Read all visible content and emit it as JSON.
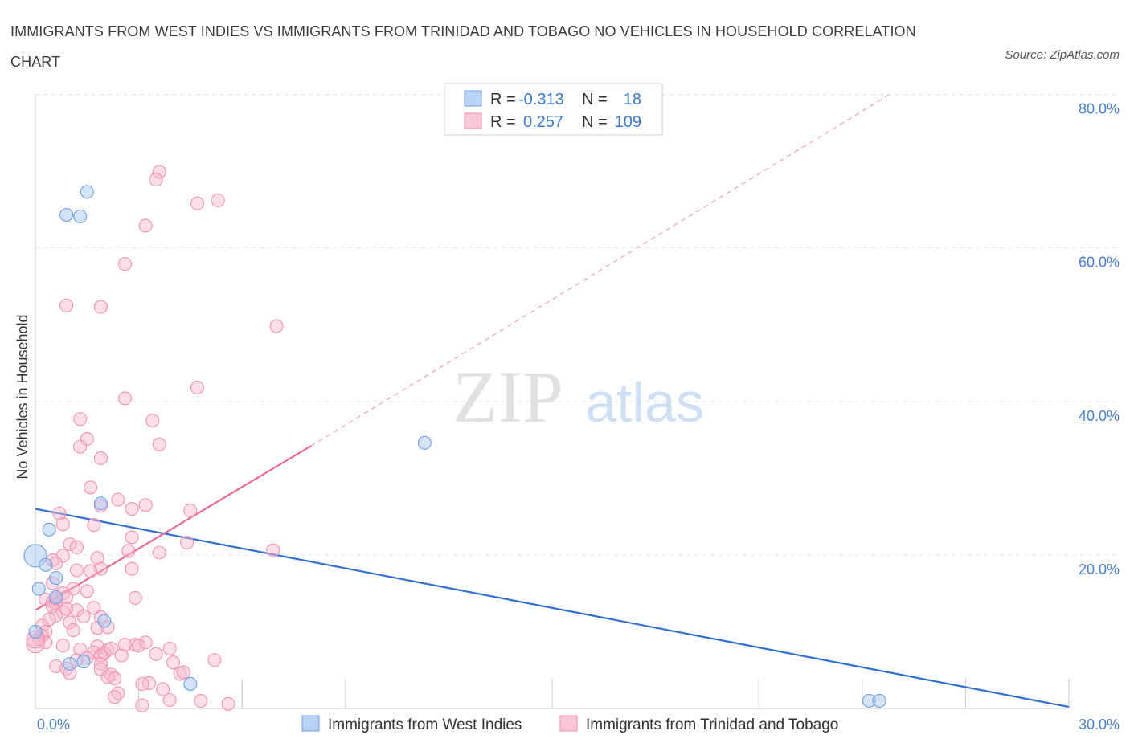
{
  "title": "IMMIGRANTS FROM WEST INDIES VS IMMIGRANTS FROM TRINIDAD AND TOBAGO NO VEHICLES IN HOUSEHOLD CORRELATION CHART",
  "source": "Source: ZipAtlas.com",
  "watermark": {
    "zip": "ZIP",
    "atlas": "atlas"
  },
  "stats": [
    {
      "r_label": "R =",
      "r_value": "-0.313",
      "n_label": "N =",
      "n_value": "18"
    },
    {
      "r_label": "R =",
      "r_value": "0.257",
      "n_label": "N =",
      "n_value": "109"
    }
  ],
  "chart_data": {
    "type": "scatter",
    "ylabel": "No Vehicles in Household",
    "xlim": [
      0,
      30
    ],
    "ylim": [
      0,
      80
    ],
    "x_tick_labels": [
      {
        "value": 0,
        "label": "0.0%"
      },
      {
        "value": 30,
        "label": "30.0%"
      }
    ],
    "y_tick_labels": [
      {
        "value": 80,
        "label": "80.0%"
      },
      {
        "value": 60,
        "label": "60.0%"
      },
      {
        "value": 40,
        "label": "40.0%"
      },
      {
        "value": 20,
        "label": "20.0%"
      }
    ],
    "gridlines": true,
    "series": [
      {
        "name": "Immigrants from West Indies",
        "color": "#6f9fe0",
        "line_color": "#2f6fcf",
        "points": [
          [
            1.5,
            67.3
          ],
          [
            0.9,
            64.3
          ],
          [
            1.3,
            64.1
          ],
          [
            11.3,
            34.6
          ],
          [
            1.9,
            26.7
          ],
          [
            0.4,
            23.3
          ],
          [
            0.0,
            19.9
          ],
          [
            0.3,
            18.7
          ],
          [
            0.6,
            17.0
          ],
          [
            0.1,
            15.6
          ],
          [
            0.6,
            14.5
          ],
          [
            2.0,
            11.4
          ],
          [
            1.4,
            6.1
          ],
          [
            1.0,
            5.8
          ],
          [
            4.5,
            3.2
          ],
          [
            24.2,
            1.0
          ],
          [
            24.5,
            1.0
          ],
          [
            0.0,
            10.0
          ]
        ],
        "trend": {
          "x": [
            0,
            30
          ],
          "y": [
            26.0,
            0.2
          ],
          "style": "solid"
        }
      },
      {
        "name": "Immigrants from Trinidad and Tobago",
        "color": "#f08db0",
        "line_color": "#e8699a",
        "points": [
          [
            3.6,
            69.9
          ],
          [
            3.5,
            68.9
          ],
          [
            5.3,
            66.2
          ],
          [
            4.7,
            65.8
          ],
          [
            3.2,
            62.9
          ],
          [
            2.6,
            57.9
          ],
          [
            0.9,
            52.5
          ],
          [
            1.9,
            52.3
          ],
          [
            7.0,
            49.8
          ],
          [
            4.7,
            41.8
          ],
          [
            2.6,
            40.4
          ],
          [
            1.3,
            37.7
          ],
          [
            3.4,
            37.5
          ],
          [
            1.5,
            35.1
          ],
          [
            1.3,
            34.1
          ],
          [
            3.6,
            34.4
          ],
          [
            1.9,
            32.6
          ],
          [
            1.6,
            28.8
          ],
          [
            2.4,
            27.2
          ],
          [
            1.9,
            26.4
          ],
          [
            3.2,
            26.5
          ],
          [
            2.8,
            26.0
          ],
          [
            4.5,
            25.8
          ],
          [
            0.7,
            25.4
          ],
          [
            1.7,
            23.9
          ],
          [
            0.8,
            24.0
          ],
          [
            2.8,
            22.3
          ],
          [
            4.4,
            21.6
          ],
          [
            1.0,
            21.4
          ],
          [
            1.2,
            21.0
          ],
          [
            2.7,
            20.5
          ],
          [
            3.6,
            20.3
          ],
          [
            6.9,
            20.6
          ],
          [
            0.8,
            19.9
          ],
          [
            1.8,
            19.6
          ],
          [
            0.5,
            19.3
          ],
          [
            0.6,
            18.9
          ],
          [
            1.9,
            18.2
          ],
          [
            1.2,
            18.0
          ],
          [
            2.8,
            18.2
          ],
          [
            1.6,
            17.9
          ],
          [
            0.5,
            16.3
          ],
          [
            1.1,
            15.6
          ],
          [
            1.5,
            15.3
          ],
          [
            0.8,
            15.0
          ],
          [
            0.9,
            14.5
          ],
          [
            0.3,
            14.2
          ],
          [
            2.9,
            14.4
          ],
          [
            0.5,
            13.9
          ],
          [
            0.6,
            13.6
          ],
          [
            0.5,
            13.3
          ],
          [
            1.7,
            13.1
          ],
          [
            1.2,
            12.8
          ],
          [
            0.8,
            12.6
          ],
          [
            0.6,
            12.1
          ],
          [
            1.9,
            11.9
          ],
          [
            0.4,
            11.6
          ],
          [
            1.0,
            11.2
          ],
          [
            0.2,
            10.8
          ],
          [
            1.8,
            10.5
          ],
          [
            2.1,
            10.6
          ],
          [
            0.3,
            10.0
          ],
          [
            0.2,
            9.5
          ],
          [
            0.1,
            9.1
          ],
          [
            0.3,
            8.6
          ],
          [
            0.0,
            8.4
          ],
          [
            0.8,
            8.2
          ],
          [
            3.2,
            8.6
          ],
          [
            2.6,
            8.3
          ],
          [
            2.9,
            8.3
          ],
          [
            1.8,
            8.1
          ],
          [
            3.9,
            7.8
          ],
          [
            1.3,
            7.7
          ],
          [
            2.1,
            7.6
          ],
          [
            1.7,
            7.3
          ],
          [
            3.5,
            7.1
          ],
          [
            1.9,
            6.9
          ],
          [
            2.0,
            7.2
          ],
          [
            1.5,
            6.6
          ],
          [
            1.2,
            6.3
          ],
          [
            5.2,
            6.3
          ],
          [
            0.6,
            5.5
          ],
          [
            1.9,
            5.8
          ],
          [
            0.9,
            5.2
          ],
          [
            1.9,
            5.1
          ],
          [
            1.0,
            4.6
          ],
          [
            2.2,
            4.4
          ],
          [
            4.2,
            4.5
          ],
          [
            4.3,
            4.7
          ],
          [
            2.1,
            4.1
          ],
          [
            2.3,
            3.9
          ],
          [
            3.3,
            3.3
          ],
          [
            3.1,
            3.2
          ],
          [
            3.7,
            2.5
          ],
          [
            2.4,
            2.0
          ],
          [
            2.3,
            1.5
          ],
          [
            3.9,
            1.1
          ],
          [
            4.8,
            1.0
          ],
          [
            5.6,
            0.6
          ],
          [
            3.1,
            0.4
          ],
          [
            0.0,
            9.0
          ],
          [
            0.6,
            14.3
          ],
          [
            1.4,
            12.0
          ],
          [
            2.2,
            7.8
          ],
          [
            3.0,
            8.2
          ],
          [
            1.1,
            10.2
          ],
          [
            0.9,
            13.0
          ],
          [
            2.5,
            6.9
          ],
          [
            4.0,
            6.0
          ]
        ],
        "trend": {
          "x": [
            0,
            8.0
          ],
          "y": [
            12.8,
            34.2
          ],
          "style": "solid"
        },
        "trend_extension": {
          "x": [
            8.0,
            24.8
          ],
          "y": [
            34.2,
            80.0
          ],
          "style": "dashed"
        }
      }
    ],
    "legend": {
      "placement": "bottom-center"
    }
  }
}
